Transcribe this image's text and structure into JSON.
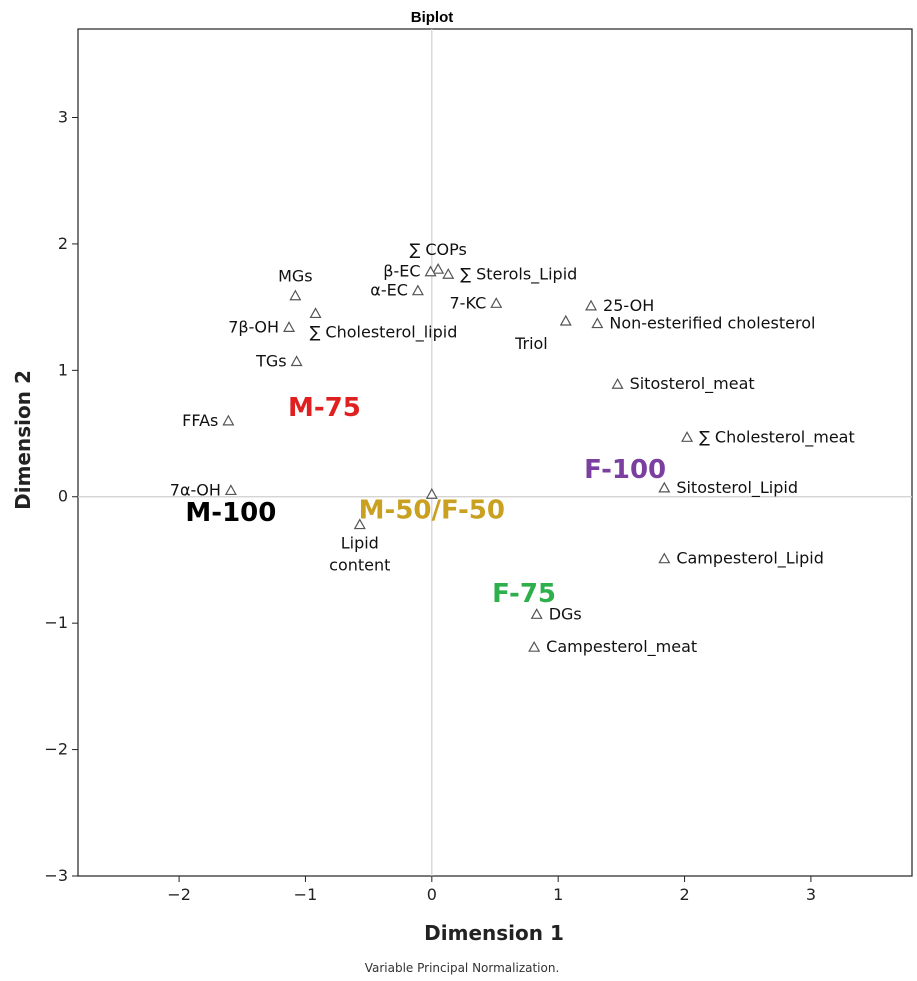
{
  "chart_data": {
    "type": "scatter",
    "title": "Biplot",
    "xlabel": "Dimension 1",
    "ylabel": "Dimension 2",
    "footnote": "Variable Principal Normalization.",
    "xlim": [
      -2.8,
      3.8
    ],
    "ylim": [
      -3.0,
      3.7
    ],
    "xticks": [
      -2,
      -1,
      0,
      1,
      2,
      3
    ],
    "yticks": [
      -3,
      -2,
      -1,
      0,
      1,
      2,
      3
    ],
    "xtick_labels": [
      "−2",
      "−1",
      "0",
      "1",
      "2",
      "3"
    ],
    "ytick_labels": [
      "−3",
      "−2",
      "−1",
      "0",
      "1",
      "2",
      "3"
    ],
    "reference_lines": {
      "x": 0,
      "y": 0
    },
    "grid": false,
    "marker": "triangle",
    "points": [
      {
        "label": "∑ COPs",
        "x": 0.05,
        "y": 1.8,
        "label_side": "above"
      },
      {
        "label": "∑ Sterols_Lipid",
        "x": 0.13,
        "y": 1.76,
        "label_side": "right"
      },
      {
        "label": "β-EC",
        "x": -0.01,
        "y": 1.78,
        "label_side": "left"
      },
      {
        "label": "α-EC",
        "x": -0.11,
        "y": 1.63,
        "label_side": "left"
      },
      {
        "label": "MGs",
        "x": -1.08,
        "y": 1.59,
        "label_side": "above"
      },
      {
        "label": "∑ Cholesterol_lipid",
        "x": -0.92,
        "y": 1.45,
        "label_side": "below-right"
      },
      {
        "label": "7β-OH",
        "x": -1.13,
        "y": 1.34,
        "label_side": "left"
      },
      {
        "label": "TGs",
        "x": -1.07,
        "y": 1.07,
        "label_side": "left"
      },
      {
        "label": "7-KC",
        "x": 0.51,
        "y": 1.53,
        "label_side": "left"
      },
      {
        "label": "25-OH",
        "x": 1.26,
        "y": 1.51,
        "label_side": "right"
      },
      {
        "label": "Triol",
        "x": 1.06,
        "y": 1.39,
        "label_side": "below-left"
      },
      {
        "label": "Non-esterified cholesterol",
        "x": 1.31,
        "y": 1.37,
        "label_side": "right"
      },
      {
        "label": "Sitosterol_meat",
        "x": 1.47,
        "y": 0.89,
        "label_side": "right"
      },
      {
        "label": "FFAs",
        "x": -1.61,
        "y": 0.6,
        "label_side": "left"
      },
      {
        "label": "∑ Cholesterol_meat",
        "x": 2.02,
        "y": 0.47,
        "label_side": "right"
      },
      {
        "label": "Sitosterol_Lipid",
        "x": 1.84,
        "y": 0.07,
        "label_side": "right"
      },
      {
        "label": "7α-OH",
        "x": -1.59,
        "y": 0.05,
        "label_side": "left"
      },
      {
        "label": "",
        "x": 0.0,
        "y": 0.02,
        "label_side": "none"
      },
      {
        "label": "Lipid\ncontent",
        "x": -0.57,
        "y": -0.22,
        "label_side": "below"
      },
      {
        "label": "Campesterol_Lipid",
        "x": 1.84,
        "y": -0.49,
        "label_side": "right"
      },
      {
        "label": "DGs",
        "x": 0.83,
        "y": -0.93,
        "label_side": "right"
      },
      {
        "label": "Campesterol_meat",
        "x": 0.81,
        "y": -1.19,
        "label_side": "right"
      }
    ],
    "group_labels": [
      {
        "label": "M-75",
        "x": -0.85,
        "y": 0.71,
        "color": "#e02020"
      },
      {
        "label": "F-100",
        "x": 1.53,
        "y": 0.22,
        "color": "#7b3fa0"
      },
      {
        "label": "M-100",
        "x": -1.59,
        "y": -0.12,
        "color": "#000000"
      },
      {
        "label": "M-50/F-50",
        "x": 0.0,
        "y": -0.1,
        "color": "#c9a020"
      },
      {
        "label": "F-75",
        "x": 0.73,
        "y": -0.76,
        "color": "#2db04b"
      }
    ]
  }
}
